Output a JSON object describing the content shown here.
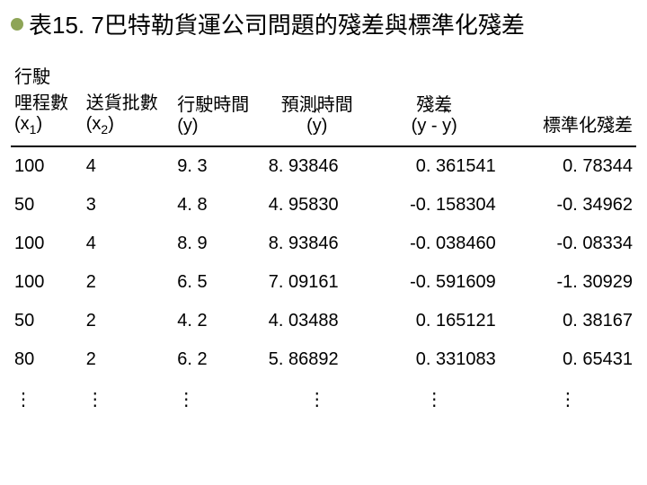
{
  "title": "表15. 7巴特勒貨運公司問題的殘差與標準化殘差",
  "headers": {
    "c1_line1": "行駛",
    "c1_line2": "哩程數",
    "c1_line3_pre": "(x",
    "c1_sub": "1",
    "c1_line3_post": ")",
    "c2_line1": "送貨批數",
    "c2_line2_pre": "(x",
    "c2_sub": "2",
    "c2_line2_post": ")",
    "c3_line1": "行駛時間",
    "c3_line2": "(y)",
    "c4_line1": "預測時間",
    "c4_line2_pre": "(",
    "c4_hat": "y",
    "c4_line2_post": ")",
    "c5_line1": "殘差",
    "c5_line2_pre": "(y - ",
    "c5_hat": "y",
    "c5_line2_post": ")",
    "c6_line1": "標準化殘差"
  },
  "rows": [
    {
      "x1": "100",
      "x2": "4",
      "y": "9. 3",
      "yhat": "8. 93846",
      "res": "0. 361541",
      "std": "0. 78344"
    },
    {
      "x1": "50",
      "x2": "3",
      "y": "4. 8",
      "yhat": "4. 95830",
      "res": "-0. 158304",
      "std": "-0. 34962"
    },
    {
      "x1": "100",
      "x2": "4",
      "y": "8. 9",
      "yhat": "8. 93846",
      "res": "-0. 038460",
      "std": "-0. 08334"
    },
    {
      "x1": "100",
      "x2": "2",
      "y": "6. 5",
      "yhat": "7. 09161",
      "res": "-0. 591609",
      "std": "-1. 30929"
    },
    {
      "x1": "50",
      "x2": "2",
      "y": "4. 2",
      "yhat": "4. 03488",
      "res": "0. 165121",
      "std": "0. 38167"
    },
    {
      "x1": "80",
      "x2": "2",
      "y": "6. 2",
      "yhat": "5. 86892",
      "res": "0. 331083",
      "std": "0. 65431"
    }
  ],
  "vdots": "⋮"
}
